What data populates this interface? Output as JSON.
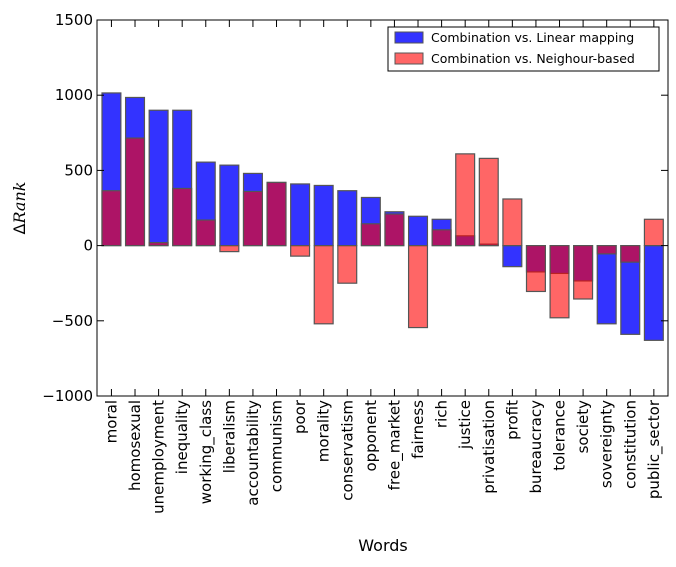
{
  "chart_data": {
    "type": "bar",
    "xlabel": "Words",
    "ylabel_prefix": "Δ",
    "ylabel_italic": "Rank",
    "ylim": [
      -1000,
      1500
    ],
    "yticks": [
      -1000,
      -500,
      0,
      500,
      1000,
      1500
    ],
    "ytick_labels": [
      "−1000",
      "−500",
      "0",
      "500",
      "1000",
      "1500"
    ],
    "grid": false,
    "legend_position": "top-right",
    "categories": [
      "moral",
      "homosexual",
      "unemployment",
      "inequality",
      "working_class",
      "liberalism",
      "accountability",
      "communism",
      "poor",
      "morality",
      "conservatism",
      "opponent",
      "free_market",
      "fairness",
      "rich",
      "justice",
      "privatisation",
      "profit",
      "bureaucracy",
      "tolerance",
      "society",
      "sovereignty",
      "constitution",
      "public_sector"
    ],
    "series": [
      {
        "name": "Combination vs. Linear mapping",
        "color": "#0000ff",
        "values": [
          1015,
          985,
          900,
          900,
          555,
          535,
          480,
          420,
          410,
          400,
          365,
          320,
          225,
          195,
          175,
          65,
          10,
          -140,
          -175,
          -185,
          -235,
          -520,
          -590,
          -630
        ]
      },
      {
        "name": "Combination vs. Neighour-based",
        "color": "#ff0000",
        "values": [
          365,
          715,
          20,
          380,
          170,
          -40,
          360,
          420,
          -70,
          -520,
          -250,
          145,
          210,
          -545,
          105,
          610,
          580,
          310,
          -305,
          -480,
          -355,
          -55,
          -110,
          175
        ]
      }
    ]
  }
}
